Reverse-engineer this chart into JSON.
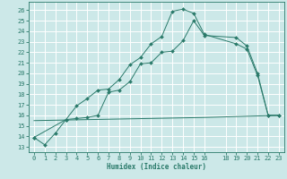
{
  "title": "",
  "xlabel": "Humidex (Indice chaleur)",
  "bg_color": "#cce8e8",
  "grid_color": "#ffffff",
  "line_color": "#2a7a6a",
  "xlim": [
    -0.5,
    23.5
  ],
  "ylim": [
    12.5,
    26.8
  ],
  "xticks": [
    0,
    1,
    2,
    3,
    4,
    5,
    6,
    7,
    8,
    9,
    10,
    11,
    12,
    13,
    14,
    15,
    16,
    18,
    19,
    20,
    21,
    22,
    23
  ],
  "yticks": [
    13,
    14,
    15,
    16,
    17,
    18,
    19,
    20,
    21,
    22,
    23,
    24,
    25,
    26
  ],
  "line1_x": [
    0,
    1,
    2,
    3,
    4,
    5,
    6,
    7,
    8,
    9,
    10,
    11,
    12,
    13,
    14,
    15,
    16,
    19,
    20,
    21,
    22,
    23
  ],
  "line1_y": [
    13.9,
    13.2,
    14.3,
    15.6,
    16.9,
    17.6,
    18.4,
    18.5,
    19.4,
    20.8,
    21.5,
    22.8,
    23.5,
    25.9,
    26.1,
    25.7,
    23.7,
    22.8,
    22.3,
    19.8,
    16.0,
    16.0
  ],
  "line2_x": [
    0,
    3,
    4,
    5,
    6,
    7,
    8,
    9,
    10,
    11,
    12,
    13,
    14,
    15,
    16,
    19,
    20,
    21,
    22,
    23
  ],
  "line2_y": [
    13.9,
    15.6,
    15.7,
    15.8,
    16.0,
    18.2,
    18.4,
    19.2,
    20.9,
    21.0,
    22.0,
    22.1,
    23.1,
    25.0,
    23.6,
    23.4,
    22.6,
    20.0,
    16.0,
    16.0
  ],
  "line3_x": [
    0,
    16,
    23
  ],
  "line3_y": [
    15.5,
    15.8,
    16.0
  ],
  "markersize": 2.0,
  "linewidth": 0.7,
  "tick_fontsize": 5.0,
  "xlabel_fontsize": 5.5
}
